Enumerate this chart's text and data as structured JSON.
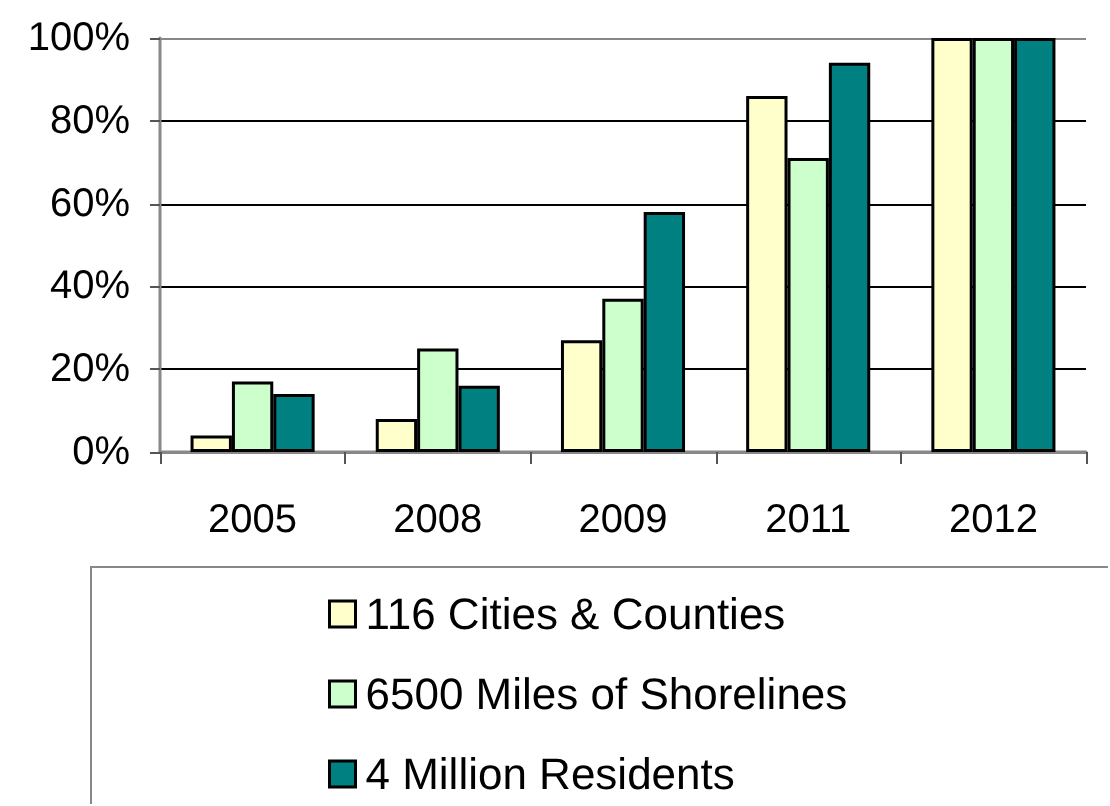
{
  "chart_data": {
    "type": "bar",
    "categories": [
      "2005",
      "2008",
      "2009",
      "2011",
      "2012"
    ],
    "series": [
      {
        "name": "116 Cities & Counties",
        "color": "#ffffcc",
        "values": [
          4,
          8,
          27,
          86,
          100
        ]
      },
      {
        "name": "6500 Miles of Shorelines",
        "color": "#ccffcc",
        "values": [
          17,
          25,
          37,
          71,
          100
        ]
      },
      {
        "name": "4 Million Residents",
        "color": "#008080",
        "values": [
          14,
          16,
          58,
          94,
          100
        ]
      }
    ],
    "ylim": [
      0,
      100
    ],
    "yticks": [
      {
        "value": 0,
        "label": "0%"
      },
      {
        "value": 20,
        "label": "20%"
      },
      {
        "value": 40,
        "label": "40%"
      },
      {
        "value": 60,
        "label": "60%"
      },
      {
        "value": 80,
        "label": "80%"
      },
      {
        "value": 100,
        "label": "100%"
      }
    ],
    "grid": "y",
    "legend": "bottom"
  }
}
